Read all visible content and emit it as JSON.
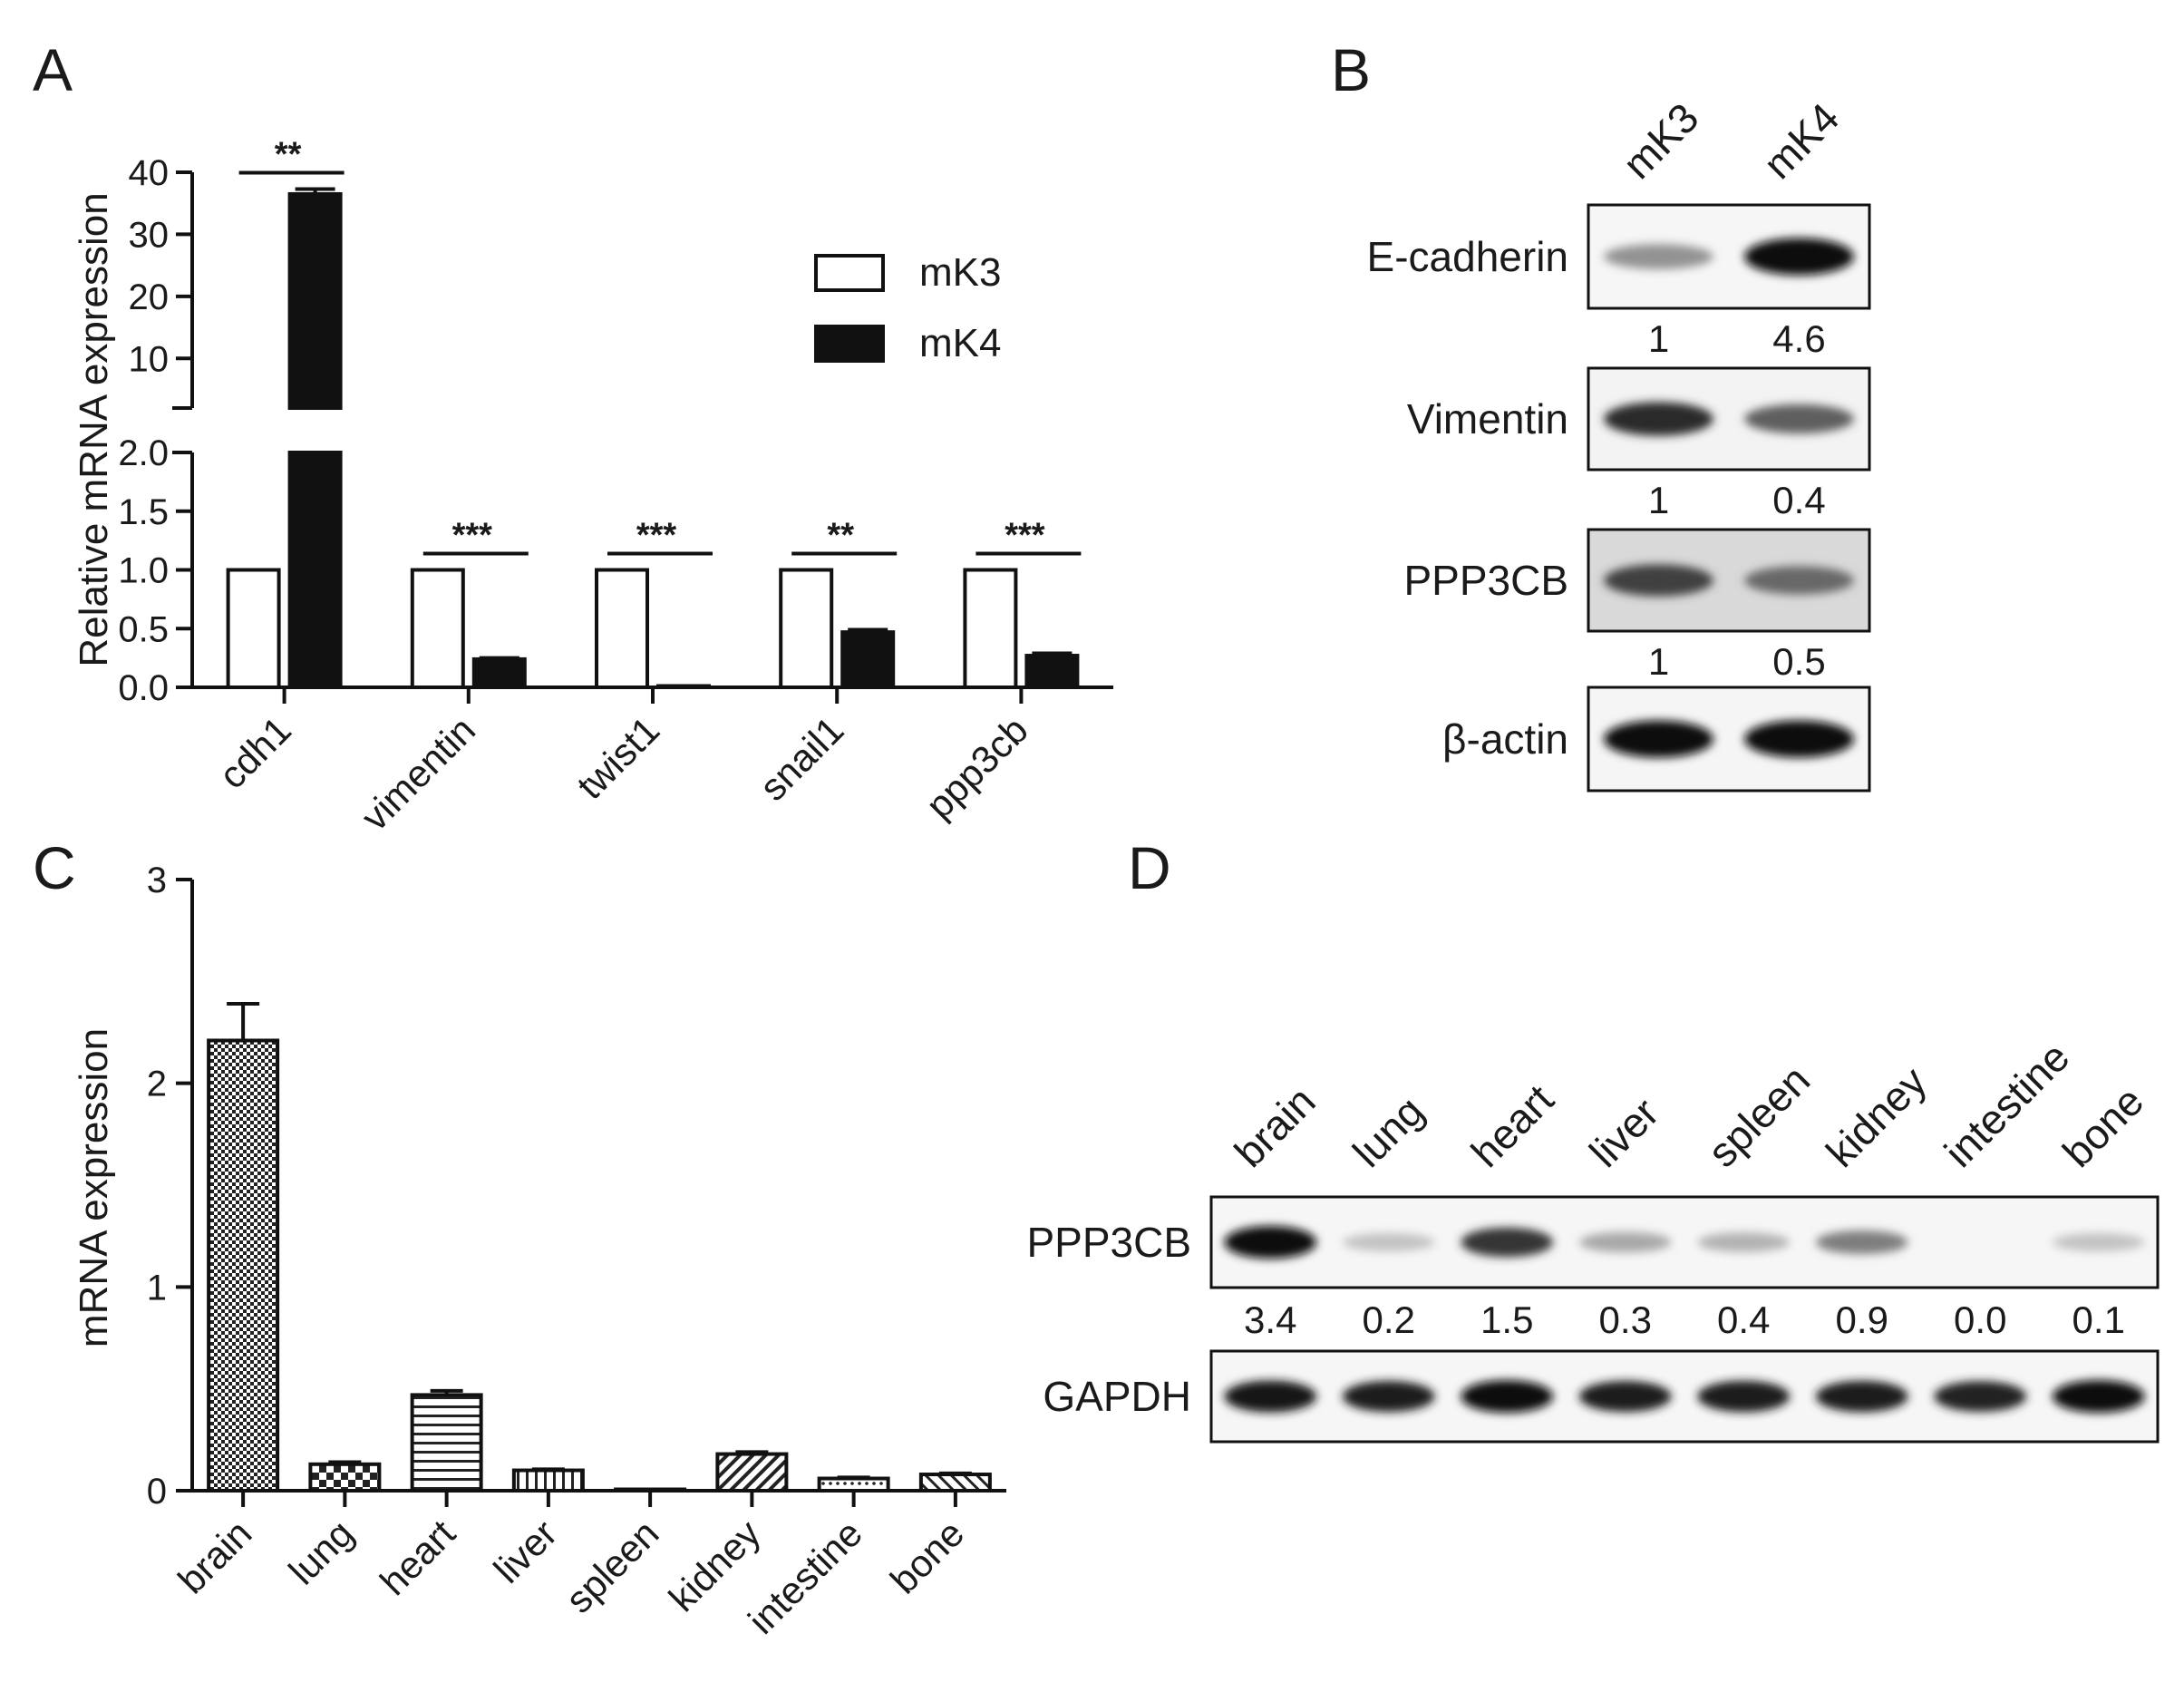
{
  "panel_labels": [
    "A",
    "B",
    "C",
    "D"
  ],
  "chart_data": [
    {
      "panel": "A",
      "type": "bar",
      "ylabel": "Relative mRNA expression",
      "categories": [
        "cdh1",
        "vimentin",
        "twist1",
        "snail1",
        "ppp3cb"
      ],
      "series": [
        {
          "name": "mK3",
          "values": [
            1.0,
            1.0,
            1.0,
            1.0,
            1.0
          ],
          "errors": [
            0,
            0,
            0,
            0,
            0
          ],
          "color": "#ffffff"
        },
        {
          "name": "mK4",
          "values": [
            36.5,
            0.24,
            0.01,
            0.47,
            0.27
          ],
          "errors": [
            0.8,
            0.01,
            0.0,
            0.02,
            0.02
          ],
          "color": "#111111"
        }
      ],
      "axis_break": true,
      "ylim_lower": [
        0,
        2.0
      ],
      "yticks_lower": [
        "0.0",
        "0.5",
        "1.0",
        "1.5",
        "2.0"
      ],
      "ylim_upper": [
        2.0,
        40
      ],
      "yticks_upper": [
        "10",
        "20",
        "30",
        "40"
      ],
      "significance": [
        "**",
        "***",
        "***",
        "**",
        "***"
      ],
      "legend": [
        "mK3",
        "mK4"
      ],
      "legend_position": "top-right"
    },
    {
      "panel": "C",
      "type": "bar",
      "ylabel": "mRNA expression",
      "categories": [
        "brain",
        "lung",
        "heart",
        "liver",
        "spleen",
        "kidney",
        "intestine",
        "bone"
      ],
      "values": [
        2.21,
        0.13,
        0.47,
        0.1,
        0.0,
        0.18,
        0.06,
        0.08
      ],
      "errors": [
        0.18,
        0.01,
        0.02,
        0.005,
        0.0,
        0.01,
        0.005,
        0.005
      ],
      "patterns": [
        "checker",
        "checker-large",
        "hlines",
        "vlines",
        "none",
        "diag",
        "dots",
        "diag2"
      ],
      "ylim": [
        0,
        3
      ],
      "yticks": [
        "0",
        "1",
        "2",
        "3"
      ]
    }
  ],
  "blots": {
    "B": {
      "columns": [
        "mK3",
        "mK4"
      ],
      "rows": [
        {
          "label": "E-cadherin",
          "quant": [
            "1",
            "4.6"
          ],
          "intensity": [
            0.35,
            1.0
          ]
        },
        {
          "label": "Vimentin",
          "quant": [
            "1",
            "0.4"
          ],
          "intensity": [
            0.85,
            0.6
          ]
        },
        {
          "label": "PPP3CB",
          "quant": [
            "1",
            "0.5"
          ],
          "intensity": [
            0.75,
            0.55
          ]
        },
        {
          "label": "β-actin",
          "quant": [],
          "intensity": [
            1.0,
            1.0
          ]
        }
      ]
    },
    "D": {
      "columns": [
        "brain",
        "lung",
        "heart",
        "liver",
        "spleen",
        "kidney",
        "intestine",
        "bone"
      ],
      "rows": [
        {
          "label": "PPP3CB",
          "quant": [
            "3.4",
            "0.2",
            "1.5",
            "0.3",
            "0.4",
            "0.9",
            "0.0",
            "0.1"
          ],
          "intensity": [
            1.0,
            0.12,
            0.8,
            0.25,
            0.2,
            0.45,
            0.0,
            0.12
          ]
        },
        {
          "label": "GAPDH",
          "quant": [],
          "intensity": [
            0.95,
            0.9,
            1.0,
            0.9,
            0.92,
            0.92,
            0.88,
            1.0
          ]
        }
      ]
    }
  }
}
